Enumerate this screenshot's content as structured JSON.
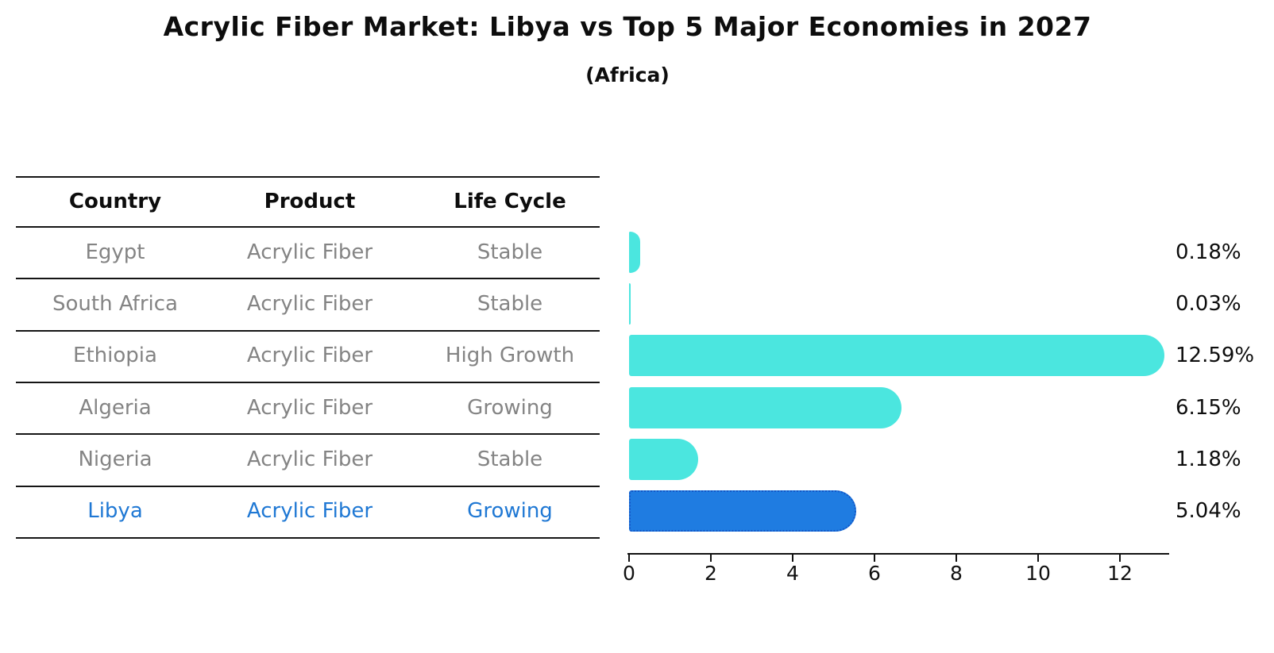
{
  "title": "Acrylic Fiber Market: Libya vs Top 5 Major Economies in 2027",
  "subtitle": "(Africa)",
  "table": {
    "headers": [
      "Country",
      "Product",
      "Life Cycle"
    ],
    "rows": [
      {
        "country": "Egypt",
        "product": "Acrylic Fiber",
        "life_cycle": "Stable",
        "highlight": false
      },
      {
        "country": "South Africa",
        "product": "Acrylic Fiber",
        "life_cycle": "Stable",
        "highlight": false
      },
      {
        "country": "Ethiopia",
        "product": "Acrylic Fiber",
        "life_cycle": "High Growth",
        "highlight": false
      },
      {
        "country": "Algeria",
        "product": "Acrylic Fiber",
        "life_cycle": "Growing",
        "highlight": false
      },
      {
        "country": "Nigeria",
        "product": "Acrylic Fiber",
        "life_cycle": "Stable",
        "highlight": true
      }
    ]
  },
  "chart_data": {
    "type": "bar",
    "orientation": "horizontal",
    "title": "Acrylic Fiber Market: Libya vs Top 5 Major Economies in 2027",
    "subtitle": "(Africa)",
    "categories": [
      "Egypt",
      "South Africa",
      "Ethiopia",
      "Algeria",
      "Nigeria",
      "Libya"
    ],
    "values": [
      0.18,
      0.03,
      12.59,
      6.15,
      1.18,
      5.04
    ],
    "value_labels": [
      "0.18%",
      "0.03%",
      "12.59%",
      "6.15%",
      "1.18%",
      "5.04%"
    ],
    "life_cycles": [
      "Stable",
      "Stable",
      "High Growth",
      "Growing",
      "Stable",
      "Growing"
    ],
    "product": "Acrylic Fiber",
    "region": "Africa",
    "highlight_category": "Libya",
    "xlim": [
      0,
      13.2
    ],
    "xticks": [
      0,
      2,
      4,
      6,
      8,
      10,
      12
    ],
    "grid": false,
    "legend": false,
    "colors": {
      "bar_normal": "#4BE6DF",
      "bar_highlight": "#1F7CE1",
      "bar_highlight_edge": "#1356C6",
      "highlight_text": "#1F78D4",
      "table_text": "#848484",
      "header_text": "#0d0d0d"
    }
  }
}
